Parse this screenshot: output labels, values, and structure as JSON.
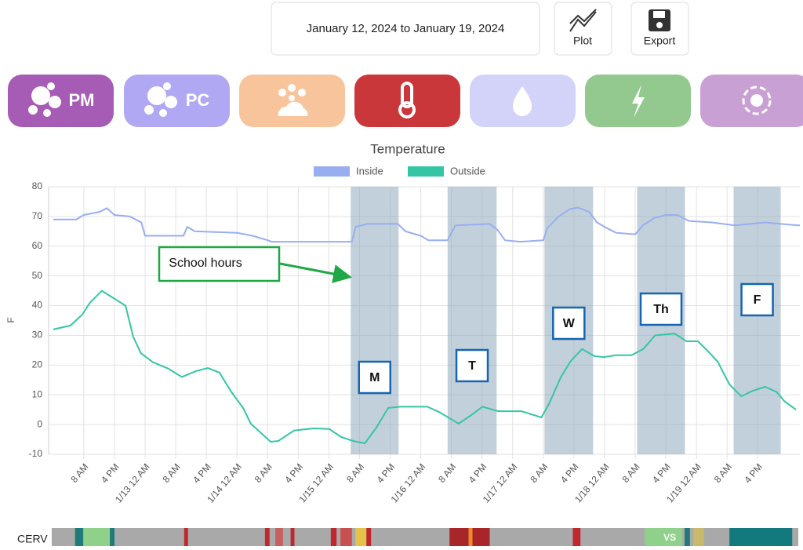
{
  "toolbar": {
    "date_range": "January 12, 2024 to January 19, 2024",
    "buttons": [
      "Plot",
      "Export"
    ]
  },
  "sensors": [
    "PM",
    "PC"
  ],
  "chart_data": {
    "type": "line",
    "title": "Temperature",
    "y_label": "F",
    "legend": "top",
    "grid": true,
    "xlim": [
      -1.2,
      195
    ],
    "ylim": [
      -10,
      80
    ],
    "yticks": [
      -10,
      0,
      10,
      20,
      30,
      40,
      50,
      60,
      70,
      80
    ],
    "xticks": [
      {
        "value": 8,
        "label": "8 AM"
      },
      {
        "value": 16,
        "label": "4 PM"
      },
      {
        "value": 24,
        "label": "1/13 12 AM"
      },
      {
        "value": 32,
        "label": "8 AM"
      },
      {
        "value": 40,
        "label": "4 PM"
      },
      {
        "value": 48,
        "label": "1/14 12 AM"
      },
      {
        "value": 56,
        "label": "8 AM"
      },
      {
        "value": 64,
        "label": "4 PM"
      },
      {
        "value": 72,
        "label": "1/15 12 AM"
      },
      {
        "value": 80,
        "label": "8 AM"
      },
      {
        "value": 88,
        "label": "4 PM"
      },
      {
        "value": 96,
        "label": "1/16 12 AM"
      },
      {
        "value": 104,
        "label": "8 AM"
      },
      {
        "value": 112,
        "label": "4 PM"
      },
      {
        "value": 120,
        "label": "1/17 12 AM"
      },
      {
        "value": 128,
        "label": "8 AM"
      },
      {
        "value": 136,
        "label": "4 PM"
      },
      {
        "value": 144,
        "label": "1/18 12 AM"
      },
      {
        "value": 152,
        "label": "8 AM"
      },
      {
        "value": 160,
        "label": "4 PM"
      },
      {
        "value": 168,
        "label": "1/19 12 AM"
      },
      {
        "value": 176,
        "label": "8 AM"
      },
      {
        "value": 184,
        "label": "4 PM"
      }
    ],
    "series": [
      {
        "name": "Inside",
        "color": "#98aef0",
        "x": [
          0,
          6,
          8,
          12,
          14,
          16,
          20,
          23,
          24,
          34,
          35,
          37,
          48,
          52,
          56,
          57,
          78,
          79,
          82,
          90,
          92,
          96,
          98,
          103,
          105,
          114,
          116,
          118,
          122,
          128,
          129,
          132,
          135,
          137,
          140,
          142,
          144,
          147,
          152,
          154,
          157,
          160,
          163,
          166,
          172,
          178,
          182,
          186,
          190,
          195
        ],
        "values": [
          69,
          69,
          70.5,
          71.5,
          72.8,
          70.5,
          70,
          68,
          63.5,
          63.5,
          66.5,
          65,
          64.5,
          63.5,
          62,
          61.5,
          61.5,
          66.5,
          67.5,
          67.5,
          65,
          63.5,
          62,
          62,
          67,
          67.5,
          65.5,
          62,
          61.5,
          62,
          66,
          70,
          72.5,
          73,
          71.5,
          68,
          66.5,
          64.5,
          64,
          67,
          69.5,
          70.5,
          70.5,
          68.5,
          68,
          67,
          67.5,
          68,
          67.5,
          67
        ]
      },
      {
        "name": "Outside",
        "color": "#34c6a4",
        "x": [
          0,
          4.5,
          7.6,
          9.6,
          12.7,
          15.8,
          18.9,
          20.9,
          22.9,
          26,
          30.1,
          33.6,
          37.3,
          40.4,
          43.4,
          46.5,
          49.6,
          51.6,
          56.8,
          58.8,
          62.9,
          68,
          72.1,
          75.2,
          78.3,
          81.4,
          84.4,
          87.5,
          90.6,
          97.7,
          100.8,
          105.9,
          109,
          112.1,
          116.2,
          122.3,
          127.5,
          129.5,
          132.6,
          135.2,
          138.1,
          141.4,
          143.9,
          146.9,
          151,
          154.1,
          157.2,
          162.3,
          165.4,
          168.4,
          171.5,
          173.6,
          176.6,
          179.7,
          182.8,
          185.9,
          188.9,
          191,
          194
        ],
        "values": [
          32,
          33.3,
          37,
          41,
          45,
          42.5,
          40,
          29.5,
          24,
          21,
          18.8,
          16,
          18,
          19,
          17.5,
          11,
          5.6,
          0.3,
          -5.8,
          -5.5,
          -2,
          -1.3,
          -1.5,
          -4.2,
          -5.5,
          -6.3,
          -1,
          5.6,
          6,
          6,
          4.2,
          0.3,
          3,
          6,
          4.5,
          4.5,
          2.4,
          7,
          16,
          21.4,
          25.4,
          23,
          22.7,
          23.3,
          23.3,
          25.4,
          30,
          30.6,
          28,
          28,
          24,
          21,
          13.5,
          9.5,
          11.4,
          12.7,
          11,
          7.8,
          5
        ]
      }
    ],
    "band_color": "#8fa9bd",
    "bands": [
      {
        "label": "M",
        "x": [
          77.7,
          90.2
        ]
      },
      {
        "label": "T",
        "x": [
          103,
          115.8
        ]
      },
      {
        "label": "W",
        "x": [
          128.3,
          141
        ]
      },
      {
        "label": "Th",
        "x": [
          152.5,
          165
        ]
      },
      {
        "label": "F",
        "x": [
          177.7,
          190
        ]
      }
    ],
    "annotation": "School hours"
  },
  "cerv": {
    "label": "CERV",
    "marker": "VS",
    "base_color": "#a9a9a9",
    "segments": [
      {
        "x": [
          5.7,
          7.8
        ],
        "color": "#1f7a7a"
      },
      {
        "x": [
          8,
          14.8
        ],
        "color": "#8fd18a"
      },
      {
        "x": [
          14.8,
          16
        ],
        "color": "#1f7a7a"
      },
      {
        "x": [
          34.2,
          35.2
        ],
        "color": "#c0282d"
      },
      {
        "x": [
          55.3,
          56.5
        ],
        "color": "#c0282d"
      },
      {
        "x": [
          58,
          60
        ],
        "color": "#c86060"
      },
      {
        "x": [
          62,
          63
        ],
        "color": "#c0282d"
      },
      {
        "x": [
          72.5,
          74
        ],
        "color": "#c0282d"
      },
      {
        "x": [
          75,
          78
        ],
        "color": "#c85050"
      },
      {
        "x": [
          78.9,
          81.8
        ],
        "color": "#e3c34a"
      },
      {
        "x": [
          81.8,
          83
        ],
        "color": "#c0282d"
      },
      {
        "x": [
          103.5,
          108.5
        ],
        "color": "#a8262a"
      },
      {
        "x": [
          108.5,
          109.5
        ],
        "color": "#f08a24"
      },
      {
        "x": [
          109.5,
          114
        ],
        "color": "#a8262a"
      },
      {
        "x": [
          135.7,
          137.7
        ],
        "color": "#c0282d"
      },
      {
        "x": [
          154.5,
          164.3
        ],
        "color": "#8fd18a"
      },
      {
        "x": [
          164.9,
          166.3
        ],
        "color": "#1f7a7a"
      },
      {
        "x": [
          167.2,
          169.9
        ],
        "color": "#c9b96b"
      },
      {
        "x": [
          176.6,
          193
        ],
        "color": "#12797d"
      }
    ]
  }
}
